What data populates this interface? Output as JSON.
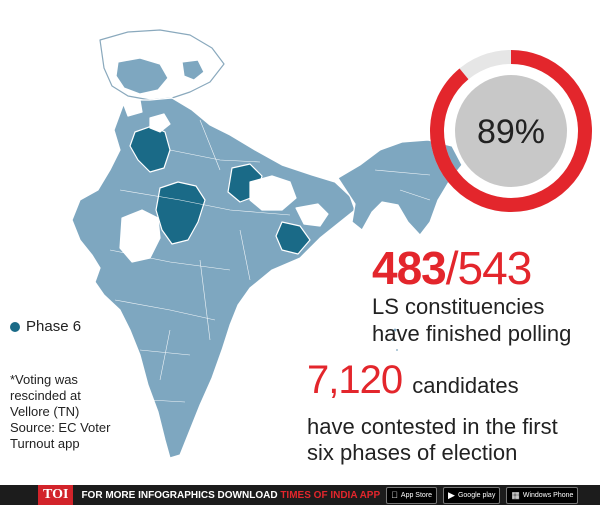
{
  "donut": {
    "label": "89%",
    "fraction": 0.89,
    "ring_color": "#e3262c",
    "track_color": "#e6e6e6",
    "inner_color": "#c8c8c8"
  },
  "stat1": {
    "done": "483",
    "sep": "/",
    "total": "543",
    "line1": "LS constituencies",
    "line2": "have finished polling"
  },
  "stat2": {
    "value": "7,120",
    "word": "candidates",
    "line1": "have contested in the first",
    "line2": "six phases of election"
  },
  "legend": {
    "label": "Phase 6",
    "color": "#1a6a87"
  },
  "note": {
    "line1": "*Voting was",
    "line2": "rescinded at",
    "line3": "Vellore (TN)",
    "line4": "Source: EC Voter",
    "line5": "Turnout app"
  },
  "map": {
    "base_color": "#7ea7c0",
    "phase6_color": "#1a6a87",
    "border_color": "#ffffff"
  },
  "footer": {
    "logo": "TOI",
    "text_a": "FOR MORE  INFOGRAPHICS DOWNLOAD ",
    "text_b": "TIMES OF INDIA APP",
    "appstore_small": "Available on the",
    "appstore": "App Store",
    "googleplay": "Google play",
    "windows": "Windows Phone"
  }
}
